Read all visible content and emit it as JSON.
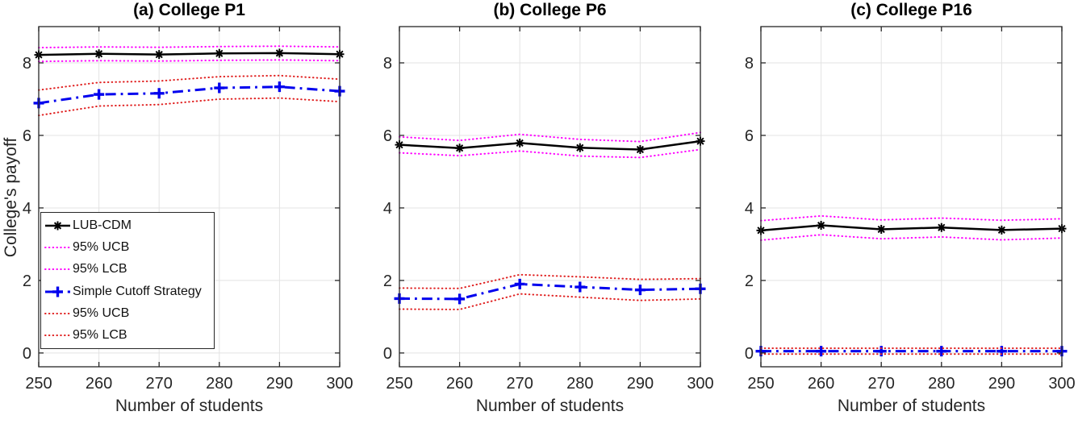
{
  "figure": {
    "background": "#ffffff",
    "axis_color": "#262626",
    "grid_color": "#e3e3e3",
    "tick_label_color": "#262626"
  },
  "chart_data": [
    {
      "type": "line",
      "title": "(a) College P1",
      "xlabel": "Number of students",
      "ylabel": "College's payoff",
      "x": [
        250,
        260,
        270,
        280,
        290,
        300
      ],
      "xticks": [
        250,
        260,
        270,
        280,
        290,
        300
      ],
      "yticks": [
        0,
        2,
        4,
        6,
        8
      ],
      "xlim": [
        250,
        300
      ],
      "ylim": [
        -0.38,
        9.0
      ],
      "grid": true,
      "legend_location": "southwest",
      "series": [
        {
          "name": "LUB-CDM",
          "color": "#000000",
          "style": "solid",
          "marker": "asterisk",
          "width": 2.5,
          "values": [
            8.22,
            8.25,
            8.23,
            8.26,
            8.27,
            8.24
          ]
        },
        {
          "name": "95% UCB",
          "color": "#ff00ff",
          "style": "dotted",
          "width": 2,
          "values": [
            8.42,
            8.44,
            8.43,
            8.45,
            8.46,
            8.44
          ]
        },
        {
          "name": "95% LCB",
          "color": "#ff00ff",
          "style": "dotted",
          "width": 2,
          "values": [
            8.04,
            8.06,
            8.05,
            8.07,
            8.08,
            8.06
          ]
        },
        {
          "name": "Simple Cutoff Strategy",
          "color": "#0000ee",
          "style": "dashdot",
          "marker": "plus",
          "width": 3,
          "values": [
            6.89,
            7.13,
            7.16,
            7.31,
            7.34,
            7.22
          ]
        },
        {
          "name": "95% UCB",
          "color": "#e02020",
          "style": "dotted",
          "width": 2,
          "values": [
            7.25,
            7.46,
            7.5,
            7.62,
            7.65,
            7.55
          ]
        },
        {
          "name": "95% LCB",
          "color": "#e02020",
          "style": "dotted",
          "width": 2,
          "values": [
            6.55,
            6.81,
            6.85,
            7.0,
            7.03,
            6.93
          ]
        }
      ]
    },
    {
      "type": "line",
      "title": "(b) College P6",
      "xlabel": "Number of students",
      "x": [
        250,
        260,
        270,
        280,
        290,
        300
      ],
      "xticks": [
        250,
        260,
        270,
        280,
        290,
        300
      ],
      "yticks": [
        0,
        2,
        4,
        6,
        8
      ],
      "xlim": [
        250,
        300
      ],
      "ylim": [
        -0.38,
        9.0
      ],
      "grid": true,
      "series": [
        {
          "name": "LUB-CDM",
          "color": "#000000",
          "style": "solid",
          "marker": "asterisk",
          "width": 2.5,
          "values": [
            5.74,
            5.65,
            5.79,
            5.66,
            5.61,
            5.84
          ]
        },
        {
          "name": "95% UCB",
          "color": "#ff00ff",
          "style": "dotted",
          "width": 2,
          "values": [
            5.96,
            5.86,
            6.03,
            5.89,
            5.83,
            6.08
          ]
        },
        {
          "name": "95% LCB",
          "color": "#ff00ff",
          "style": "dotted",
          "width": 2,
          "values": [
            5.52,
            5.44,
            5.57,
            5.43,
            5.39,
            5.61
          ]
        },
        {
          "name": "Simple Cutoff Strategy",
          "color": "#0000ee",
          "style": "dashdot",
          "marker": "plus",
          "width": 3,
          "values": [
            1.5,
            1.49,
            1.9,
            1.82,
            1.74,
            1.77
          ]
        },
        {
          "name": "95% UCB",
          "color": "#e02020",
          "style": "dotted",
          "width": 2,
          "values": [
            1.79,
            1.78,
            2.16,
            2.1,
            2.03,
            2.05
          ]
        },
        {
          "name": "95% LCB",
          "color": "#e02020",
          "style": "dotted",
          "width": 2,
          "values": [
            1.21,
            1.2,
            1.63,
            1.54,
            1.45,
            1.49
          ]
        }
      ]
    },
    {
      "type": "line",
      "title": "(c) College P16",
      "xlabel": "Number of students",
      "x": [
        250,
        260,
        270,
        280,
        290,
        300
      ],
      "xticks": [
        250,
        260,
        270,
        280,
        290,
        300
      ],
      "yticks": [
        0,
        2,
        4,
        6,
        8
      ],
      "xlim": [
        250,
        300
      ],
      "ylim": [
        -0.38,
        9.0
      ],
      "grid": true,
      "series": [
        {
          "name": "LUB-CDM",
          "color": "#000000",
          "style": "solid",
          "marker": "asterisk",
          "width": 2.5,
          "values": [
            3.38,
            3.52,
            3.41,
            3.46,
            3.39,
            3.43
          ]
        },
        {
          "name": "95% UCB",
          "color": "#ff00ff",
          "style": "dotted",
          "width": 2,
          "values": [
            3.65,
            3.78,
            3.67,
            3.72,
            3.66,
            3.7
          ]
        },
        {
          "name": "95% LCB",
          "color": "#ff00ff",
          "style": "dotted",
          "width": 2,
          "values": [
            3.11,
            3.26,
            3.15,
            3.2,
            3.12,
            3.17
          ]
        },
        {
          "name": "Simple Cutoff Strategy",
          "color": "#0000ee",
          "style": "dashdot",
          "marker": "plus",
          "width": 3,
          "values": [
            0.05,
            0.05,
            0.05,
            0.05,
            0.05,
            0.05
          ]
        },
        {
          "name": "95% UCB",
          "color": "#e02020",
          "style": "dotted",
          "width": 2,
          "values": [
            0.13,
            0.13,
            0.13,
            0.13,
            0.13,
            0.13
          ]
        },
        {
          "name": "95% LCB",
          "color": "#e02020",
          "style": "dotted",
          "width": 2,
          "values": [
            -0.03,
            -0.03,
            -0.03,
            -0.03,
            -0.03,
            -0.03
          ]
        }
      ]
    }
  ]
}
